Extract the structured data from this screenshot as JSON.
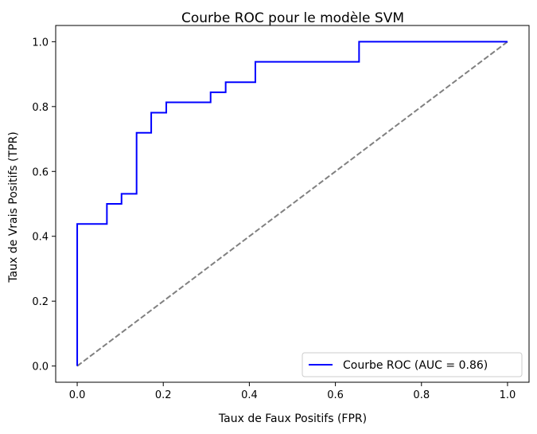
{
  "chart_data": {
    "type": "line",
    "title": "Courbe ROC pour le modèle SVM",
    "xlabel": "Taux de Faux Positifs (FPR)",
    "ylabel": "Taux de Vrais Positifs (TPR)",
    "xlim": [
      -0.05,
      1.05
    ],
    "ylim": [
      -0.05,
      1.05
    ],
    "xticks": [
      0.0,
      0.2,
      0.4,
      0.6,
      0.8,
      1.0
    ],
    "yticks": [
      0.0,
      0.2,
      0.4,
      0.6,
      0.8,
      1.0
    ],
    "xtick_labels": [
      "0.0",
      "0.2",
      "0.4",
      "0.6",
      "0.8",
      "1.0"
    ],
    "ytick_labels": [
      "0.0",
      "0.2",
      "0.4",
      "0.6",
      "0.8",
      "1.0"
    ],
    "grid": false,
    "legend_position": "lower-right",
    "series": [
      {
        "name": "Courbe ROC (AUC = 0.86)",
        "color": "#0000ff",
        "style": "solid",
        "x": [
          0.0,
          0.0,
          0.069,
          0.069,
          0.103,
          0.103,
          0.138,
          0.138,
          0.172,
          0.172,
          0.207,
          0.207,
          0.31,
          0.31,
          0.345,
          0.345,
          0.414,
          0.414,
          0.655,
          0.655,
          1.0
        ],
        "y": [
          0.0,
          0.438,
          0.438,
          0.5,
          0.5,
          0.531,
          0.531,
          0.719,
          0.719,
          0.781,
          0.781,
          0.813,
          0.813,
          0.844,
          0.844,
          0.875,
          0.875,
          0.938,
          0.938,
          1.0,
          1.0
        ]
      },
      {
        "color": "#808080",
        "style": "dashed",
        "x": [
          0.0,
          1.0
        ],
        "y": [
          0.0,
          1.0
        ]
      }
    ]
  }
}
